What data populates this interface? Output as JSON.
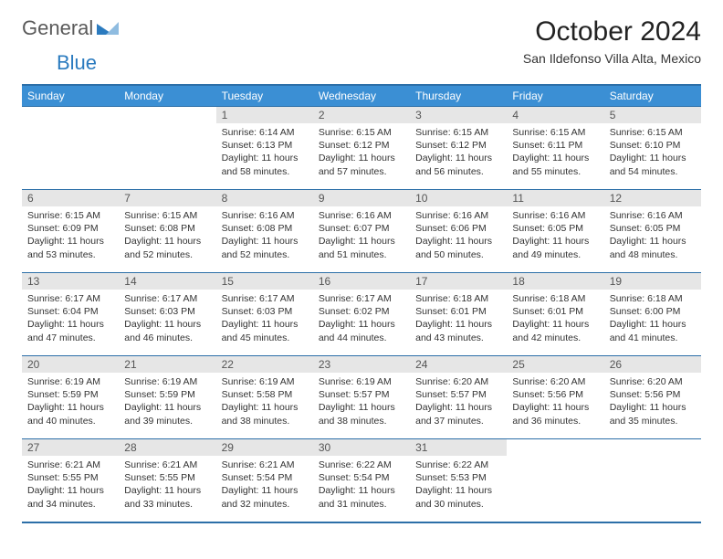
{
  "logo": {
    "text1": "General",
    "text2": "Blue"
  },
  "title": "October 2024",
  "subtitle": "San Ildefonso Villa Alta, Mexico",
  "colors": {
    "header_bg": "#3b8fd4",
    "border": "#2c6fa8",
    "daynum_bg": "#e6e6e6",
    "logo_blue": "#2b7bbf"
  },
  "day_names": [
    "Sunday",
    "Monday",
    "Tuesday",
    "Wednesday",
    "Thursday",
    "Friday",
    "Saturday"
  ],
  "weeks": [
    [
      null,
      null,
      {
        "n": "1",
        "sunrise": "Sunrise: 6:14 AM",
        "sunset": "Sunset: 6:13 PM",
        "day1": "Daylight: 11 hours",
        "day2": "and 58 minutes."
      },
      {
        "n": "2",
        "sunrise": "Sunrise: 6:15 AM",
        "sunset": "Sunset: 6:12 PM",
        "day1": "Daylight: 11 hours",
        "day2": "and 57 minutes."
      },
      {
        "n": "3",
        "sunrise": "Sunrise: 6:15 AM",
        "sunset": "Sunset: 6:12 PM",
        "day1": "Daylight: 11 hours",
        "day2": "and 56 minutes."
      },
      {
        "n": "4",
        "sunrise": "Sunrise: 6:15 AM",
        "sunset": "Sunset: 6:11 PM",
        "day1": "Daylight: 11 hours",
        "day2": "and 55 minutes."
      },
      {
        "n": "5",
        "sunrise": "Sunrise: 6:15 AM",
        "sunset": "Sunset: 6:10 PM",
        "day1": "Daylight: 11 hours",
        "day2": "and 54 minutes."
      }
    ],
    [
      {
        "n": "6",
        "sunrise": "Sunrise: 6:15 AM",
        "sunset": "Sunset: 6:09 PM",
        "day1": "Daylight: 11 hours",
        "day2": "and 53 minutes."
      },
      {
        "n": "7",
        "sunrise": "Sunrise: 6:15 AM",
        "sunset": "Sunset: 6:08 PM",
        "day1": "Daylight: 11 hours",
        "day2": "and 52 minutes."
      },
      {
        "n": "8",
        "sunrise": "Sunrise: 6:16 AM",
        "sunset": "Sunset: 6:08 PM",
        "day1": "Daylight: 11 hours",
        "day2": "and 52 minutes."
      },
      {
        "n": "9",
        "sunrise": "Sunrise: 6:16 AM",
        "sunset": "Sunset: 6:07 PM",
        "day1": "Daylight: 11 hours",
        "day2": "and 51 minutes."
      },
      {
        "n": "10",
        "sunrise": "Sunrise: 6:16 AM",
        "sunset": "Sunset: 6:06 PM",
        "day1": "Daylight: 11 hours",
        "day2": "and 50 minutes."
      },
      {
        "n": "11",
        "sunrise": "Sunrise: 6:16 AM",
        "sunset": "Sunset: 6:05 PM",
        "day1": "Daylight: 11 hours",
        "day2": "and 49 minutes."
      },
      {
        "n": "12",
        "sunrise": "Sunrise: 6:16 AM",
        "sunset": "Sunset: 6:05 PM",
        "day1": "Daylight: 11 hours",
        "day2": "and 48 minutes."
      }
    ],
    [
      {
        "n": "13",
        "sunrise": "Sunrise: 6:17 AM",
        "sunset": "Sunset: 6:04 PM",
        "day1": "Daylight: 11 hours",
        "day2": "and 47 minutes."
      },
      {
        "n": "14",
        "sunrise": "Sunrise: 6:17 AM",
        "sunset": "Sunset: 6:03 PM",
        "day1": "Daylight: 11 hours",
        "day2": "and 46 minutes."
      },
      {
        "n": "15",
        "sunrise": "Sunrise: 6:17 AM",
        "sunset": "Sunset: 6:03 PM",
        "day1": "Daylight: 11 hours",
        "day2": "and 45 minutes."
      },
      {
        "n": "16",
        "sunrise": "Sunrise: 6:17 AM",
        "sunset": "Sunset: 6:02 PM",
        "day1": "Daylight: 11 hours",
        "day2": "and 44 minutes."
      },
      {
        "n": "17",
        "sunrise": "Sunrise: 6:18 AM",
        "sunset": "Sunset: 6:01 PM",
        "day1": "Daylight: 11 hours",
        "day2": "and 43 minutes."
      },
      {
        "n": "18",
        "sunrise": "Sunrise: 6:18 AM",
        "sunset": "Sunset: 6:01 PM",
        "day1": "Daylight: 11 hours",
        "day2": "and 42 minutes."
      },
      {
        "n": "19",
        "sunrise": "Sunrise: 6:18 AM",
        "sunset": "Sunset: 6:00 PM",
        "day1": "Daylight: 11 hours",
        "day2": "and 41 minutes."
      }
    ],
    [
      {
        "n": "20",
        "sunrise": "Sunrise: 6:19 AM",
        "sunset": "Sunset: 5:59 PM",
        "day1": "Daylight: 11 hours",
        "day2": "and 40 minutes."
      },
      {
        "n": "21",
        "sunrise": "Sunrise: 6:19 AM",
        "sunset": "Sunset: 5:59 PM",
        "day1": "Daylight: 11 hours",
        "day2": "and 39 minutes."
      },
      {
        "n": "22",
        "sunrise": "Sunrise: 6:19 AM",
        "sunset": "Sunset: 5:58 PM",
        "day1": "Daylight: 11 hours",
        "day2": "and 38 minutes."
      },
      {
        "n": "23",
        "sunrise": "Sunrise: 6:19 AM",
        "sunset": "Sunset: 5:57 PM",
        "day1": "Daylight: 11 hours",
        "day2": "and 38 minutes."
      },
      {
        "n": "24",
        "sunrise": "Sunrise: 6:20 AM",
        "sunset": "Sunset: 5:57 PM",
        "day1": "Daylight: 11 hours",
        "day2": "and 37 minutes."
      },
      {
        "n": "25",
        "sunrise": "Sunrise: 6:20 AM",
        "sunset": "Sunset: 5:56 PM",
        "day1": "Daylight: 11 hours",
        "day2": "and 36 minutes."
      },
      {
        "n": "26",
        "sunrise": "Sunrise: 6:20 AM",
        "sunset": "Sunset: 5:56 PM",
        "day1": "Daylight: 11 hours",
        "day2": "and 35 minutes."
      }
    ],
    [
      {
        "n": "27",
        "sunrise": "Sunrise: 6:21 AM",
        "sunset": "Sunset: 5:55 PM",
        "day1": "Daylight: 11 hours",
        "day2": "and 34 minutes."
      },
      {
        "n": "28",
        "sunrise": "Sunrise: 6:21 AM",
        "sunset": "Sunset: 5:55 PM",
        "day1": "Daylight: 11 hours",
        "day2": "and 33 minutes."
      },
      {
        "n": "29",
        "sunrise": "Sunrise: 6:21 AM",
        "sunset": "Sunset: 5:54 PM",
        "day1": "Daylight: 11 hours",
        "day2": "and 32 minutes."
      },
      {
        "n": "30",
        "sunrise": "Sunrise: 6:22 AM",
        "sunset": "Sunset: 5:54 PM",
        "day1": "Daylight: 11 hours",
        "day2": "and 31 minutes."
      },
      {
        "n": "31",
        "sunrise": "Sunrise: 6:22 AM",
        "sunset": "Sunset: 5:53 PM",
        "day1": "Daylight: 11 hours",
        "day2": "and 30 minutes."
      },
      null,
      null
    ]
  ]
}
